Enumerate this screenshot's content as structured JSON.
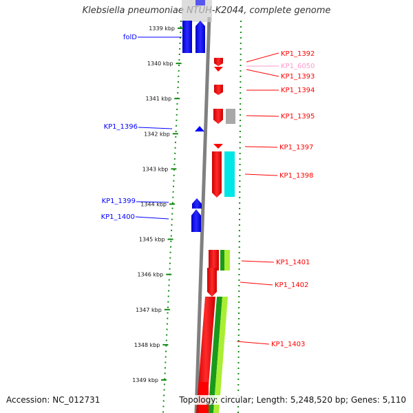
{
  "title": "Klebsiella pneumoniae NTUH-K2044, complete genome",
  "footer": {
    "accession": "Accession: NC_012731",
    "summary": "Topology: circular; Length: 5,248,520 bp; Genes: 5,110"
  },
  "colors": {
    "forward": "#ff0000",
    "reverse": "#0000ff",
    "pseudo": "#ff99cc",
    "track_grey": "#a8a8a8",
    "track_cyan": "#00e5e5",
    "track_green": "#22aa22",
    "track_lime": "#aaee33",
    "dots": "#118811"
  },
  "ticks": [
    "1339 kbp",
    "1340 kbp",
    "1341 kbp",
    "1342 kbp",
    "1343 kbp",
    "1344 kbp",
    "1345 kbp",
    "1346 kbp",
    "1347 kbp",
    "1348 kbp",
    "1349 kbp"
  ],
  "genes": [
    {
      "name": "folD",
      "strand": "reverse"
    },
    {
      "name": "KP1_1392",
      "strand": "forward"
    },
    {
      "name": "KP1_6050",
      "strand": "pseudo"
    },
    {
      "name": "KP1_1393",
      "strand": "forward"
    },
    {
      "name": "KP1_1394",
      "strand": "forward"
    },
    {
      "name": "KP1_1395",
      "strand": "forward"
    },
    {
      "name": "KP1_1396",
      "strand": "reverse"
    },
    {
      "name": "KP1_1397",
      "strand": "forward"
    },
    {
      "name": "KP1_1398",
      "strand": "forward"
    },
    {
      "name": "KP1_1399",
      "strand": "reverse"
    },
    {
      "name": "KP1_1400",
      "strand": "reverse"
    },
    {
      "name": "KP1_1401",
      "strand": "forward"
    },
    {
      "name": "KP1_1402",
      "strand": "forward"
    },
    {
      "name": "KP1_1403",
      "strand": "forward"
    }
  ]
}
